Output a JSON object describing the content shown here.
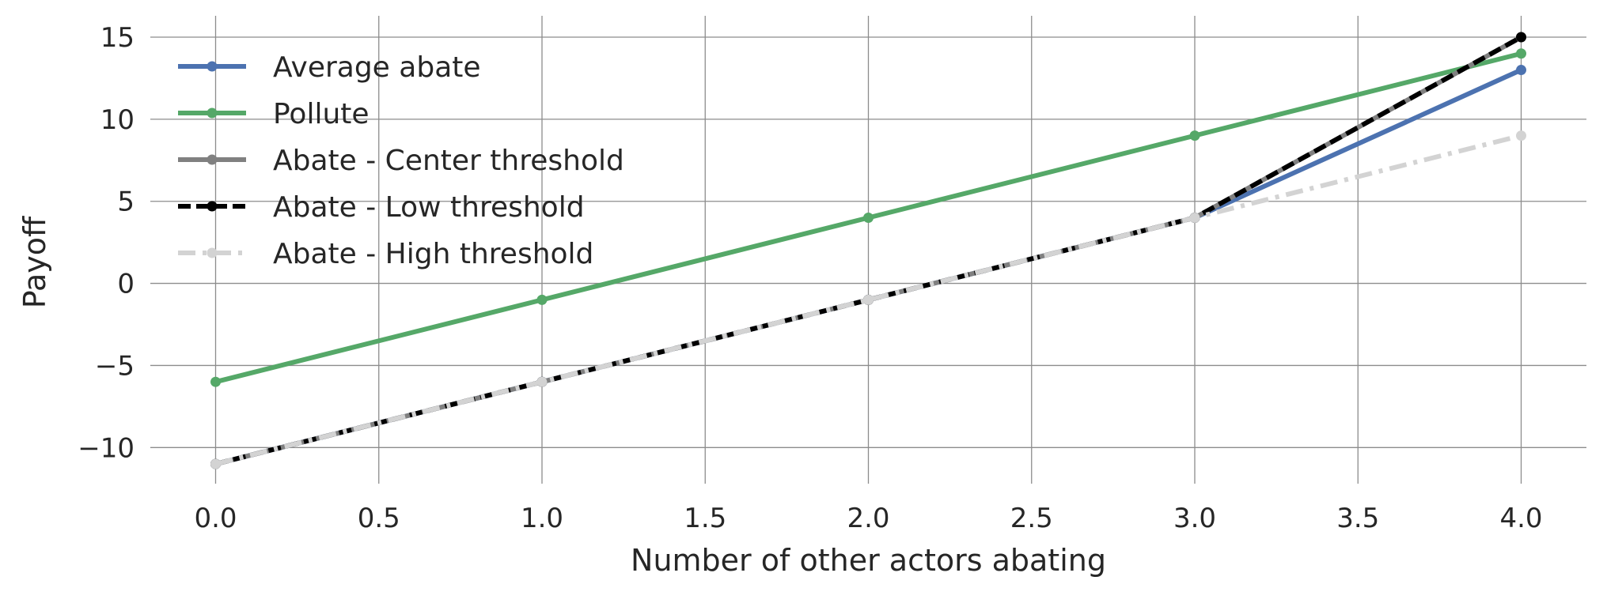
{
  "chart_data": {
    "type": "line",
    "title": "",
    "xlabel": "Number of other actors abating",
    "ylabel": "Payoff",
    "xlim": [
      -0.2,
      4.2
    ],
    "ylim": [
      -12.2,
      16.3
    ],
    "xticks": [
      0.0,
      0.5,
      1.0,
      1.5,
      2.0,
      2.5,
      3.0,
      3.5,
      4.0
    ],
    "xtick_labels": [
      "0.0",
      "0.5",
      "1.0",
      "1.5",
      "2.0",
      "2.5",
      "3.0",
      "3.5",
      "4.0"
    ],
    "yticks": [
      -10,
      -5,
      0,
      5,
      10,
      15
    ],
    "ytick_labels": [
      "−10",
      "−5",
      "0",
      "5",
      "10",
      "15"
    ],
    "grid": true,
    "legend_position": "top-left",
    "x": [
      0,
      1,
      2,
      3,
      4
    ],
    "series": [
      {
        "name": "Average abate",
        "values": [
          -11,
          -6,
          -1,
          4,
          13
        ],
        "color": "#4c72b0",
        "line_style": "solid"
      },
      {
        "name": "Pollute",
        "values": [
          -6,
          -1,
          4,
          9,
          14
        ],
        "color": "#55a868",
        "line_style": "solid"
      },
      {
        "name": "Abate - Center threshold",
        "values": [
          -11,
          -6,
          -1,
          4,
          15
        ],
        "color": "#808080",
        "line_style": "solid"
      },
      {
        "name": "Abate - Low threshold",
        "values": [
          -11,
          -6,
          -1,
          4,
          15
        ],
        "color": "#000000",
        "line_style": "dashed"
      },
      {
        "name": "Abate - High threshold",
        "values": [
          -11,
          -6,
          -1,
          4,
          9
        ],
        "color": "#d3d3d3",
        "line_style": "dashdot"
      }
    ]
  }
}
